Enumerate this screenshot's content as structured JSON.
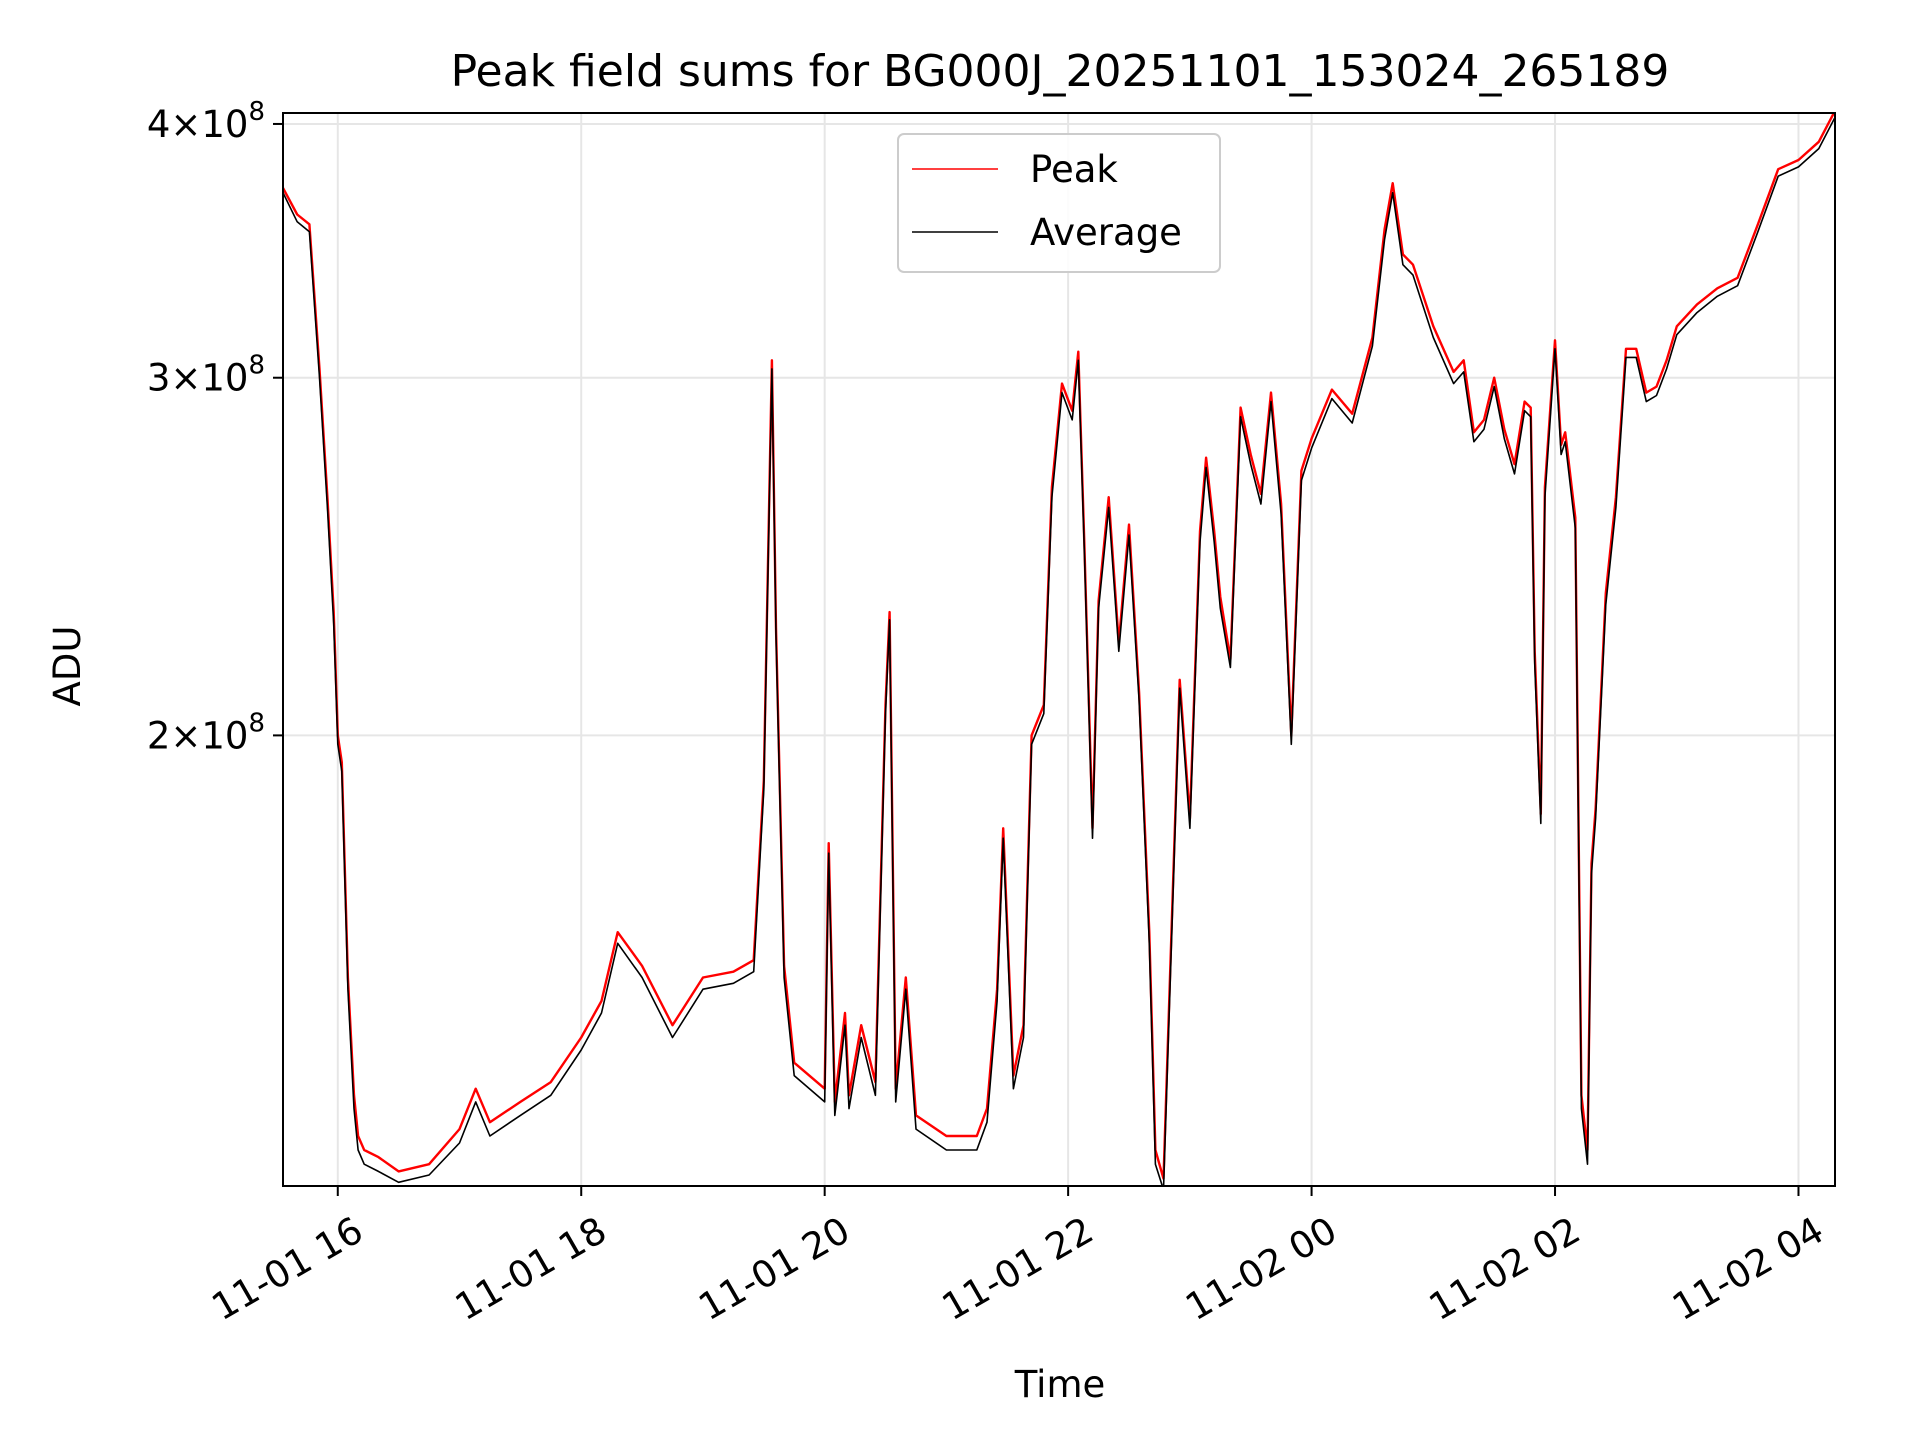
{
  "chart_data": {
    "type": "line",
    "title": "Peak field sums for BG000J_20251101_153024_265189",
    "xlabel": "Time",
    "ylabel": "ADU",
    "y_scale": "log",
    "grid": true,
    "legend_placement": "upper center",
    "xlim": [
      "2025-11-01 15:33",
      "2025-11-02 04:18"
    ],
    "ylim": [
      120000000,
      405000000
    ],
    "x_ticks": [
      {
        "value": "2025-11-01 16:00",
        "label": "11-01 16"
      },
      {
        "value": "2025-11-01 18:00",
        "label": "11-01 18"
      },
      {
        "value": "2025-11-01 20:00",
        "label": "11-01 20"
      },
      {
        "value": "2025-11-01 22:00",
        "label": "11-01 22"
      },
      {
        "value": "2025-11-02 00:00",
        "label": "11-02 00"
      },
      {
        "value": "2025-11-02 02:00",
        "label": "11-02 02"
      },
      {
        "value": "2025-11-02 04:00",
        "label": "11-02 04"
      }
    ],
    "y_ticks": [
      {
        "value": 200000000,
        "mantissa": "2",
        "base": "10",
        "exp": "8"
      },
      {
        "value": 300000000,
        "mantissa": "3",
        "base": "10",
        "exp": "8"
      },
      {
        "value": 400000000,
        "mantissa": "4",
        "base": "10",
        "exp": "8"
      }
    ],
    "x": [
      "2025-11-01 15:33",
      "2025-11-01 15:40",
      "2025-11-01 15:46",
      "2025-11-01 15:51",
      "2025-11-01 15:55",
      "2025-11-01 15:58",
      "2025-11-01 16:00",
      "2025-11-01 16:02",
      "2025-11-01 16:05",
      "2025-11-01 16:08",
      "2025-11-01 16:10",
      "2025-11-01 16:13",
      "2025-11-01 16:20",
      "2025-11-01 16:30",
      "2025-11-01 16:45",
      "2025-11-01 17:00",
      "2025-11-01 17:08",
      "2025-11-01 17:15",
      "2025-11-01 17:30",
      "2025-11-01 17:45",
      "2025-11-01 18:00",
      "2025-11-01 18:10",
      "2025-11-01 18:18",
      "2025-11-01 18:30",
      "2025-11-01 18:45",
      "2025-11-01 19:00",
      "2025-11-01 19:15",
      "2025-11-01 19:25",
      "2025-11-01 19:30",
      "2025-11-01 19:34",
      "2025-11-01 19:36",
      "2025-11-01 19:40",
      "2025-11-01 19:45",
      "2025-11-01 20:00",
      "2025-11-01 20:02",
      "2025-11-01 20:05",
      "2025-11-01 20:10",
      "2025-11-01 20:12",
      "2025-11-01 20:18",
      "2025-11-01 20:25",
      "2025-11-01 20:30",
      "2025-11-01 20:32",
      "2025-11-01 20:35",
      "2025-11-01 20:40",
      "2025-11-01 20:45",
      "2025-11-01 21:00",
      "2025-11-01 21:15",
      "2025-11-01 21:20",
      "2025-11-01 21:25",
      "2025-11-01 21:28",
      "2025-11-01 21:33",
      "2025-11-01 21:38",
      "2025-11-01 21:42",
      "2025-11-01 21:48",
      "2025-11-01 21:52",
      "2025-11-01 21:57",
      "2025-11-01 22:02",
      "2025-11-01 22:05",
      "2025-11-01 22:08",
      "2025-11-01 22:12",
      "2025-11-01 22:15",
      "2025-11-01 22:20",
      "2025-11-01 22:25",
      "2025-11-01 22:30",
      "2025-11-01 22:35",
      "2025-11-01 22:40",
      "2025-11-01 22:43",
      "2025-11-01 22:47",
      "2025-11-01 22:50",
      "2025-11-01 22:55",
      "2025-11-01 23:00",
      "2025-11-01 23:05",
      "2025-11-01 23:08",
      "2025-11-01 23:12",
      "2025-11-01 23:15",
      "2025-11-01 23:20",
      "2025-11-01 23:25",
      "2025-11-01 23:30",
      "2025-11-01 23:35",
      "2025-11-01 23:40",
      "2025-11-01 23:45",
      "2025-11-01 23:50",
      "2025-11-01 23:55",
      "2025-11-02 00:00",
      "2025-11-02 00:10",
      "2025-11-02 00:20",
      "2025-11-02 00:30",
      "2025-11-02 00:36",
      "2025-11-02 00:40",
      "2025-11-02 00:45",
      "2025-11-02 00:50",
      "2025-11-02 01:00",
      "2025-11-02 01:10",
      "2025-11-02 01:15",
      "2025-11-02 01:20",
      "2025-11-02 01:25",
      "2025-11-02 01:30",
      "2025-11-02 01:35",
      "2025-11-02 01:40",
      "2025-11-02 01:45",
      "2025-11-02 01:48",
      "2025-11-02 01:50",
      "2025-11-02 01:53",
      "2025-11-02 01:55",
      "2025-11-02 02:00",
      "2025-11-02 02:03",
      "2025-11-02 02:05",
      "2025-11-02 02:10",
      "2025-11-02 02:13",
      "2025-11-02 02:16",
      "2025-11-02 02:18",
      "2025-11-02 02:20",
      "2025-11-02 02:25",
      "2025-11-02 02:30",
      "2025-11-02 02:35",
      "2025-11-02 02:40",
      "2025-11-02 02:45",
      "2025-11-02 02:50",
      "2025-11-02 02:55",
      "2025-11-02 03:00",
      "2025-11-02 03:10",
      "2025-11-02 03:20",
      "2025-11-02 03:30",
      "2025-11-02 03:40",
      "2025-11-02 03:50",
      "2025-11-02 04:00",
      "2025-11-02 04:10",
      "2025-11-02 04:18"
    ],
    "series": [
      {
        "name": "Peak",
        "color": "#ff0000",
        "values": [
          372000000,
          361000000,
          357000000,
          303000000,
          261000000,
          230000000,
          200000000,
          194000000,
          152000000,
          133000000,
          127000000,
          125000000,
          124000000,
          122000000,
          123000000,
          128000000,
          134000000,
          129000000,
          132000000,
          135000000,
          142000000,
          148000000,
          160000000,
          154000000,
          144000000,
          152000000,
          153000000,
          155000000,
          190000000,
          306000000,
          226000000,
          154000000,
          138000000,
          134000000,
          177000000,
          132000000,
          146000000,
          133000000,
          144000000,
          135000000,
          207000000,
          230000000,
          134000000,
          152000000,
          130000000,
          127000000,
          127000000,
          131000000,
          150000000,
          180000000,
          136000000,
          144000000,
          200000000,
          207000000,
          265000000,
          298000000,
          289000000,
          309000000,
          248000000,
          180000000,
          233000000,
          262000000,
          222000000,
          254000000,
          210000000,
          160000000,
          125000000,
          121000000,
          150000000,
          213000000,
          182000000,
          252000000,
          274000000,
          252000000,
          234000000,
          218000000,
          290000000,
          275000000,
          263000000,
          295000000,
          260000000,
          200000000,
          270000000,
          280000000,
          296000000,
          288000000,
          314000000,
          355000000,
          374000000,
          345000000,
          341000000,
          318000000,
          302000000,
          306000000,
          282000000,
          286000000,
          300000000,
          283000000,
          272000000,
          292000000,
          290000000,
          220000000,
          183000000,
          265000000,
          313000000,
          278000000,
          282000000,
          256000000,
          133000000,
          125000000,
          173000000,
          184000000,
          235000000,
          262000000,
          310000000,
          310000000,
          295000000,
          297000000,
          306000000,
          318000000,
          326000000,
          332000000,
          336000000,
          357000000,
          380000000,
          384000000,
          392000000,
          406000000
        ]
      },
      {
        "name": "Average",
        "color": "#000000",
        "values": [
          370000000,
          358000000,
          354000000,
          300000000,
          258000000,
          227000000,
          198000000,
          192000000,
          150000000,
          131000000,
          125000000,
          123000000,
          122000000,
          120500000,
          121500000,
          126000000,
          132000000,
          127000000,
          130000000,
          133000000,
          140000000,
          146000000,
          158000000,
          152000000,
          142000000,
          150000000,
          151000000,
          153000000,
          188000000,
          303000000,
          224000000,
          152000000,
          136000000,
          132000000,
          175000000,
          130000000,
          144000000,
          131000000,
          142000000,
          133000000,
          205000000,
          228000000,
          132000000,
          150000000,
          128000000,
          125000000,
          125000000,
          129000000,
          148000000,
          178000000,
          134000000,
          142000000,
          198000000,
          205000000,
          262000000,
          295000000,
          286000000,
          306000000,
          246000000,
          178000000,
          231000000,
          259000000,
          220000000,
          251000000,
          208000000,
          158000000,
          123000000,
          119500000,
          148000000,
          211000000,
          180000000,
          249000000,
          271000000,
          249000000,
          231000000,
          216000000,
          287000000,
          272000000,
          260000000,
          292000000,
          257000000,
          198000000,
          267000000,
          277000000,
          293000000,
          285000000,
          311000000,
          351000000,
          370000000,
          341000000,
          337000000,
          314000000,
          298000000,
          302000000,
          279000000,
          283000000,
          297000000,
          280000000,
          269000000,
          289000000,
          287000000,
          217000000,
          181000000,
          262000000,
          310000000,
          275000000,
          279000000,
          253000000,
          131000000,
          123000000,
          171000000,
          182000000,
          232000000,
          259000000,
          307000000,
          307000000,
          292000000,
          294000000,
          303000000,
          315000000,
          323000000,
          329000000,
          333000000,
          354000000,
          377000000,
          381000000,
          389000000,
          403000000
        ]
      }
    ]
  }
}
